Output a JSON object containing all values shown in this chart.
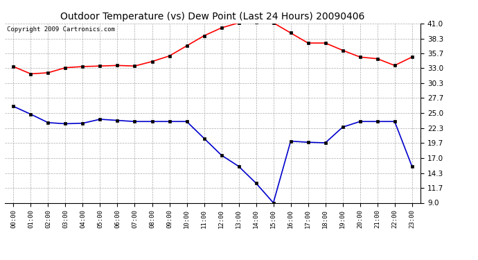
{
  "title": "Outdoor Temperature (vs) Dew Point (Last 24 Hours) 20090406",
  "copyright": "Copyright 2009 Cartronics.com",
  "hours": [
    "00:00",
    "01:00",
    "02:00",
    "03:00",
    "04:00",
    "05:00",
    "06:00",
    "07:00",
    "08:00",
    "09:00",
    "10:00",
    "11:00",
    "12:00",
    "13:00",
    "14:00",
    "15:00",
    "16:00",
    "17:00",
    "18:00",
    "19:00",
    "20:00",
    "21:00",
    "22:00",
    "23:00"
  ],
  "temp": [
    33.3,
    32.0,
    32.2,
    33.1,
    33.3,
    33.4,
    33.5,
    33.4,
    34.2,
    35.2,
    37.0,
    38.8,
    40.2,
    41.1,
    41.2,
    41.1,
    39.3,
    37.5,
    37.5,
    36.2,
    35.0,
    34.7,
    33.5,
    35.0
  ],
  "dew": [
    26.2,
    24.8,
    23.3,
    23.1,
    23.2,
    23.9,
    23.7,
    23.5,
    23.5,
    23.5,
    23.5,
    20.5,
    17.5,
    15.5,
    12.5,
    9.0,
    20.0,
    19.8,
    19.7,
    22.5,
    23.5,
    23.5,
    23.5,
    15.5
  ],
  "ylim_min": 9.0,
  "ylim_max": 41.0,
  "yticks": [
    9.0,
    11.7,
    14.3,
    17.0,
    19.7,
    22.3,
    25.0,
    27.7,
    30.3,
    33.0,
    35.7,
    38.3,
    41.0
  ],
  "temp_color": "#ff0000",
  "dew_color": "#0000cc",
  "bg_color": "#ffffff",
  "grid_color": "#aaaaaa",
  "title_fontsize": 10,
  "copyright_fontsize": 6.5,
  "tick_fontsize": 7.5,
  "xtick_fontsize": 6.5
}
